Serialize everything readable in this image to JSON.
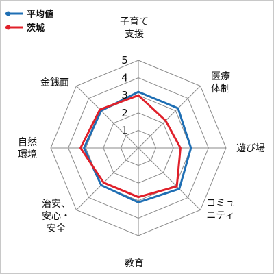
{
  "chart_data": {
    "type": "radar",
    "categories": [
      [
        "子育て",
        "支援"
      ],
      [
        "医療",
        "体制"
      ],
      [
        "遊び場"
      ],
      [
        "コミュ",
        "ニティ"
      ],
      [
        "教育"
      ],
      [
        "治安、",
        "安心・",
        "安全"
      ],
      [
        "自然",
        "環境"
      ],
      [
        "金銭面"
      ]
    ],
    "tick_labels": [
      "1",
      "2",
      "3",
      "4",
      "5"
    ],
    "rlim": [
      0,
      5
    ],
    "grid": true,
    "legend_position": "top-left",
    "series": [
      {
        "name": "平均値",
        "color": "#1f6fb4",
        "values": [
          3.2,
          3.2,
          3.0,
          3.3,
          3.1,
          3.0,
          3.1,
          3.0
        ]
      },
      {
        "name": "茨城",
        "color": "#e0202a",
        "values": [
          3.0,
          2.2,
          2.4,
          3.1,
          2.8,
          2.8,
          3.3,
          3.1
        ]
      }
    ]
  }
}
